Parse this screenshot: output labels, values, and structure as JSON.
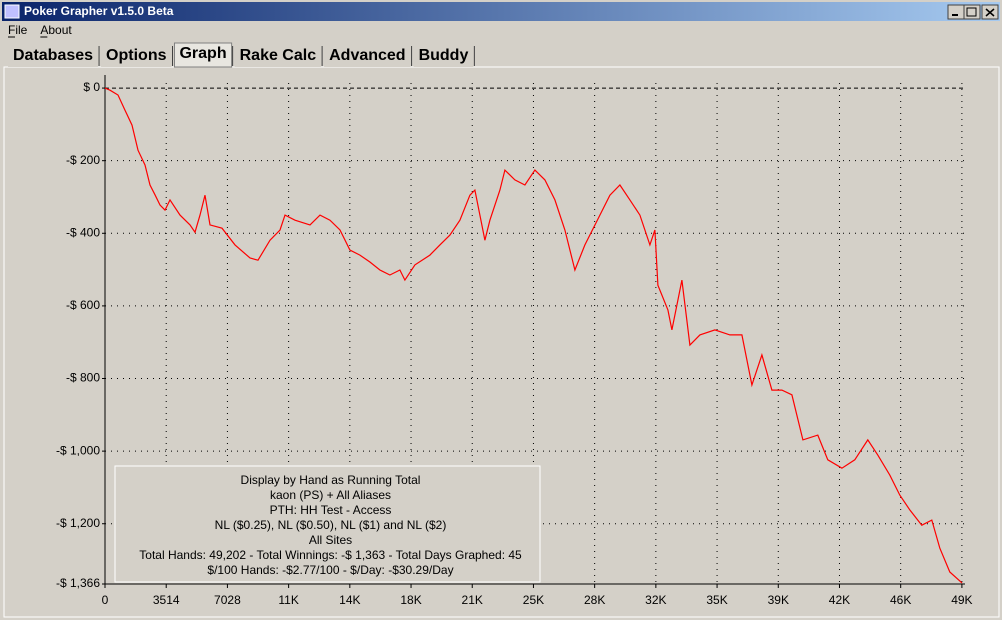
{
  "window": {
    "title": "Poker Grapher v1.5.0 Beta",
    "menu": [
      "File",
      "About"
    ],
    "tabs": [
      "Databases",
      "Options",
      "Graph",
      "Rake Calc",
      "Advanced",
      "Buddy"
    ],
    "active_tab": 2
  },
  "chart_data": {
    "type": "line",
    "x": [
      0,
      287,
      746,
      1148,
      1550,
      1894,
      2296,
      2583,
      2870,
      3157,
      3444,
      3731,
      4305,
      4879,
      5166,
      5453,
      5740,
      6027,
      6716,
      7462,
      8323,
      8782,
      9471,
      10045,
      10332,
      10906,
      11767,
      12341,
      12915,
      13489,
      14063,
      14637,
      15211,
      15785,
      16359,
      16933,
      17220,
      17794,
      18655,
      19229,
      19803,
      20377,
      20951,
      21238,
      21525,
      21812,
      22099,
      22673,
      22960,
      23534,
      24108,
      24682,
      25256,
      25830,
      26404,
      26978,
      27552,
      28413,
      28987,
      29561,
      30135,
      30709,
      31283,
      31570,
      31742,
      32316,
      32546,
      32890,
      33120,
      33579,
      34153,
      35014,
      35875,
      36564,
      37138,
      37712,
      38286,
      38860,
      39434,
      40065,
      40926,
      41500,
      42304,
      43050,
      43796,
      44370,
      45059,
      45633,
      46207,
      46896,
      47470,
      47929,
      48503,
      49202
    ],
    "series": [
      {
        "color": "#ff0000",
        "values": [
          0,
          -6,
          -19,
          -61,
          -102,
          -171,
          -212,
          -267,
          -294,
          -322,
          -336,
          -308,
          -350,
          -377,
          -397,
          -350,
          -295,
          -377,
          -386,
          -432,
          -468,
          -474,
          -419,
          -391,
          -350,
          -364,
          -377,
          -350,
          -364,
          -391,
          -446,
          -460,
          -479,
          -501,
          -515,
          -501,
          -529,
          -487,
          -460,
          -432,
          -405,
          -364,
          -295,
          -281,
          -350,
          -419,
          -364,
          -281,
          -226,
          -253,
          -267,
          -226,
          -253,
          -308,
          -391,
          -501,
          -432,
          -350,
          -295,
          -267,
          -308,
          -350,
          -432,
          -391,
          -543,
          -611,
          -666,
          -584,
          -529,
          -708,
          -680,
          -666,
          -680,
          -680,
          -818,
          -735,
          -832,
          -832,
          -845,
          -969,
          -956,
          -1024,
          -1047,
          -1024,
          -969,
          -1011,
          -1066,
          -1121,
          -1162,
          -1204,
          -1190,
          -1267,
          -1333,
          -1363
        ]
      }
    ],
    "xlim": [
      0,
      49202
    ],
    "ylim": [
      -1366,
      36
    ],
    "xticks": [
      0,
      3514,
      7028,
      {
        "value": 10542,
        "label": "11K"
      },
      {
        "value": 14056,
        "label": "14K"
      },
      {
        "value": 17570,
        "label": "18K"
      },
      {
        "value": 21084,
        "label": "21K"
      },
      {
        "value": 24598,
        "label": "25K"
      },
      {
        "value": 28112,
        "label": "28K"
      },
      {
        "value": 31626,
        "label": "32K"
      },
      {
        "value": 35140,
        "label": "35K"
      },
      {
        "value": 38654,
        "label": "39K"
      },
      {
        "value": 42168,
        "label": "42K"
      },
      {
        "value": 45682,
        "label": "46K"
      },
      {
        "value": 49196,
        "label": "49K"
      }
    ],
    "yticks": [
      {
        "value": 0,
        "label": "$ 0"
      },
      {
        "value": -200,
        "label": "-$ 200"
      },
      {
        "value": -400,
        "label": "-$ 400"
      },
      {
        "value": -600,
        "label": "-$ 600"
      },
      {
        "value": -800,
        "label": "-$ 800"
      },
      {
        "value": -1000,
        "label": "-$ 1,000"
      },
      {
        "value": -1200,
        "label": "-$ 1,200"
      },
      {
        "value": -1366,
        "label": "-$ 1,366"
      }
    ],
    "grid": true,
    "annotations": [
      "Display by Hand as Running Total",
      "kaon (PS) + All Aliases",
      "PTH: HH Test - Access",
      "NL ($0.25), NL ($0.50), NL ($1) and NL ($2)",
      "All Sites",
      "Total Hands: 49,202 - Total Winnings: -$ 1,363 - Total Days Graphed: 45",
      "$/100 Hands: -$2.77/100 - $/Day: -$30.29/Day"
    ]
  }
}
